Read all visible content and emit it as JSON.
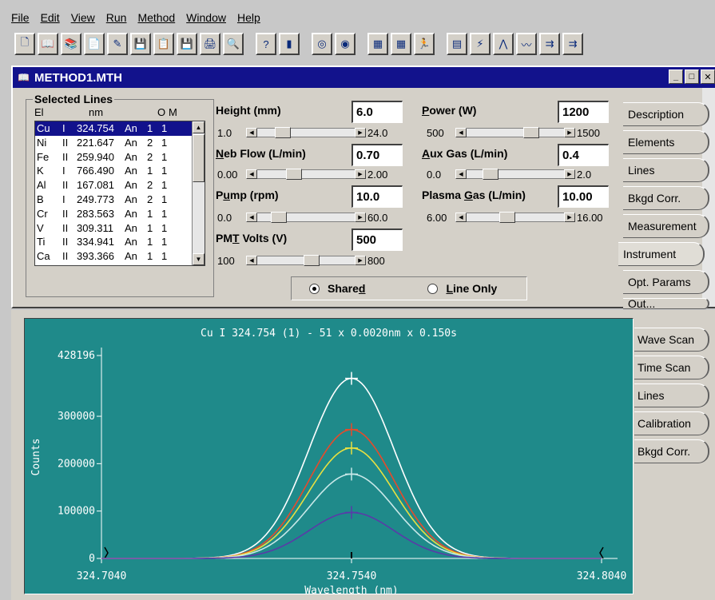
{
  "menu": [
    "File",
    "Edit",
    "View",
    "Run",
    "Method",
    "Window",
    "Help"
  ],
  "toolbar": {
    "icons": [
      "new-icon",
      "open-icon",
      "open-folder-icon",
      "open-file-icon",
      "edit-icon",
      "analyze-icon",
      "report-icon",
      "save-icon",
      "print-icon",
      "print-preview-icon",
      "help-icon",
      "sample-icon",
      "plasma-icon",
      "stop-icon",
      "results-icon",
      "results-list-icon",
      "run-icon",
      "spreadsheet-icon",
      "calibrate-icon",
      "peak-icon",
      "spectrum-icon",
      "autosampler-icon",
      "autosampler-setup-icon"
    ],
    "glyphs": [
      "🗋",
      "📖",
      "📚",
      "📄",
      "✎",
      "💾",
      "📋",
      "💾",
      "🖨",
      "🔍",
      "?",
      "▮",
      "◎",
      "◉",
      "▦",
      "▦",
      "🏃",
      "▤",
      "⚡",
      "⋀",
      "〰",
      "⇉",
      "⇉"
    ]
  },
  "window": {
    "title": "METHOD1.MTH"
  },
  "selected_lines": {
    "title": "Selected Lines",
    "headers": [
      "El",
      "nm",
      "O",
      "M"
    ],
    "rows": [
      {
        "el": "Cu",
        "ion": "I",
        "nm": "324.754",
        "mode": "An",
        "o": "1",
        "m": "1"
      },
      {
        "el": "Ni",
        "ion": "II",
        "nm": "221.647",
        "mode": "An",
        "o": "2",
        "m": "1"
      },
      {
        "el": "Fe",
        "ion": "II",
        "nm": "259.940",
        "mode": "An",
        "o": "2",
        "m": "1"
      },
      {
        "el": "K",
        "ion": "I",
        "nm": "766.490",
        "mode": "An",
        "o": "1",
        "m": "1"
      },
      {
        "el": "Al",
        "ion": "II",
        "nm": "167.081",
        "mode": "An",
        "o": "2",
        "m": "1"
      },
      {
        "el": "B",
        "ion": "I",
        "nm": "249.773",
        "mode": "An",
        "o": "2",
        "m": "1"
      },
      {
        "el": "Cr",
        "ion": "II",
        "nm": "283.563",
        "mode": "An",
        "o": "1",
        "m": "1"
      },
      {
        "el": "V",
        "ion": "II",
        "nm": "309.311",
        "mode": "An",
        "o": "1",
        "m": "1"
      },
      {
        "el": "Ti",
        "ion": "II",
        "nm": "334.941",
        "mode": "An",
        "o": "1",
        "m": "1"
      },
      {
        "el": "Ca",
        "ion": "II",
        "nm": "393.366",
        "mode": "An",
        "o": "1",
        "m": "1"
      }
    ]
  },
  "params": {
    "height": {
      "pre": "Height (mm)",
      "u": "",
      "post": "",
      "value": "6.0",
      "min": "1.0",
      "max": "24.0",
      "level": 0.22
    },
    "neb_flow": {
      "pre": "",
      "u": "N",
      "post": "eb Flow (L/min)",
      "value": "0.70",
      "min": "0.00",
      "max": "2.00",
      "level": 0.35
    },
    "pump": {
      "pre": "P",
      "u": "u",
      "post": "mp (rpm)",
      "value": "10.0",
      "min": "0.0",
      "max": "60.0",
      "level": 0.17
    },
    "pmt": {
      "pre": "PM",
      "u": "T",
      "post": " Volts (V)",
      "value": "500",
      "min": "100",
      "max": "800",
      "level": 0.57
    },
    "power": {
      "pre": "",
      "u": "P",
      "post": "ower (W)",
      "value": "1200",
      "min": "500",
      "max": "1500",
      "level": 0.7
    },
    "aux_gas": {
      "pre": "",
      "u": "A",
      "post": "ux Gas (L/min)",
      "value": "0.4",
      "min": "0.0",
      "max": "2.0",
      "level": 0.2
    },
    "plasma_gas": {
      "pre": "Plasma ",
      "u": "G",
      "post": "as (L/min)",
      "value": "10.00",
      "min": "6.00",
      "max": "16.00",
      "level": 0.4
    }
  },
  "radio": {
    "shared": {
      "pre": "Share",
      "u": "d",
      "post": ""
    },
    "line_only": {
      "pre": "",
      "u": "L",
      "post": "ine Only"
    }
  },
  "method_tabs": [
    "Description",
    "Elements",
    "Lines",
    "Bkgd Corr.",
    "Measurement",
    "Instrument",
    "Opt. Params",
    "Out..."
  ],
  "active_method_tab": "Instrument",
  "plot_tabs": [
    "Wave Scan",
    "Time Scan",
    "Lines",
    "Calibration",
    "Bkgd Corr."
  ],
  "chart_data": {
    "type": "line",
    "title": "Cu I 324.754 (1) - 51 x 0.0020nm x 0.150s",
    "xlabel": "Wavelength (nm)",
    "ylabel": "Counts",
    "xlim": [
      324.704,
      324.804
    ],
    "ylim": [
      0,
      428196
    ],
    "x_ticks": [
      "324.7040",
      "324.7540",
      "324.8040"
    ],
    "y_ticks": [
      "0",
      "100000",
      "200000",
      "300000",
      "428196"
    ],
    "background": "#1f8a8a",
    "peak_x": 324.754,
    "peak_width_nm": 0.0085,
    "series": [
      {
        "color": "#ffffff",
        "peak": 380000
      },
      {
        "color": "#e84a2a",
        "peak": 272000
      },
      {
        "color": "#e8e040",
        "peak": 233000
      },
      {
        "color": "#c8e8e8",
        "peak": 178000
      },
      {
        "color": "#5a3aa8",
        "peak": 97000
      }
    ]
  }
}
